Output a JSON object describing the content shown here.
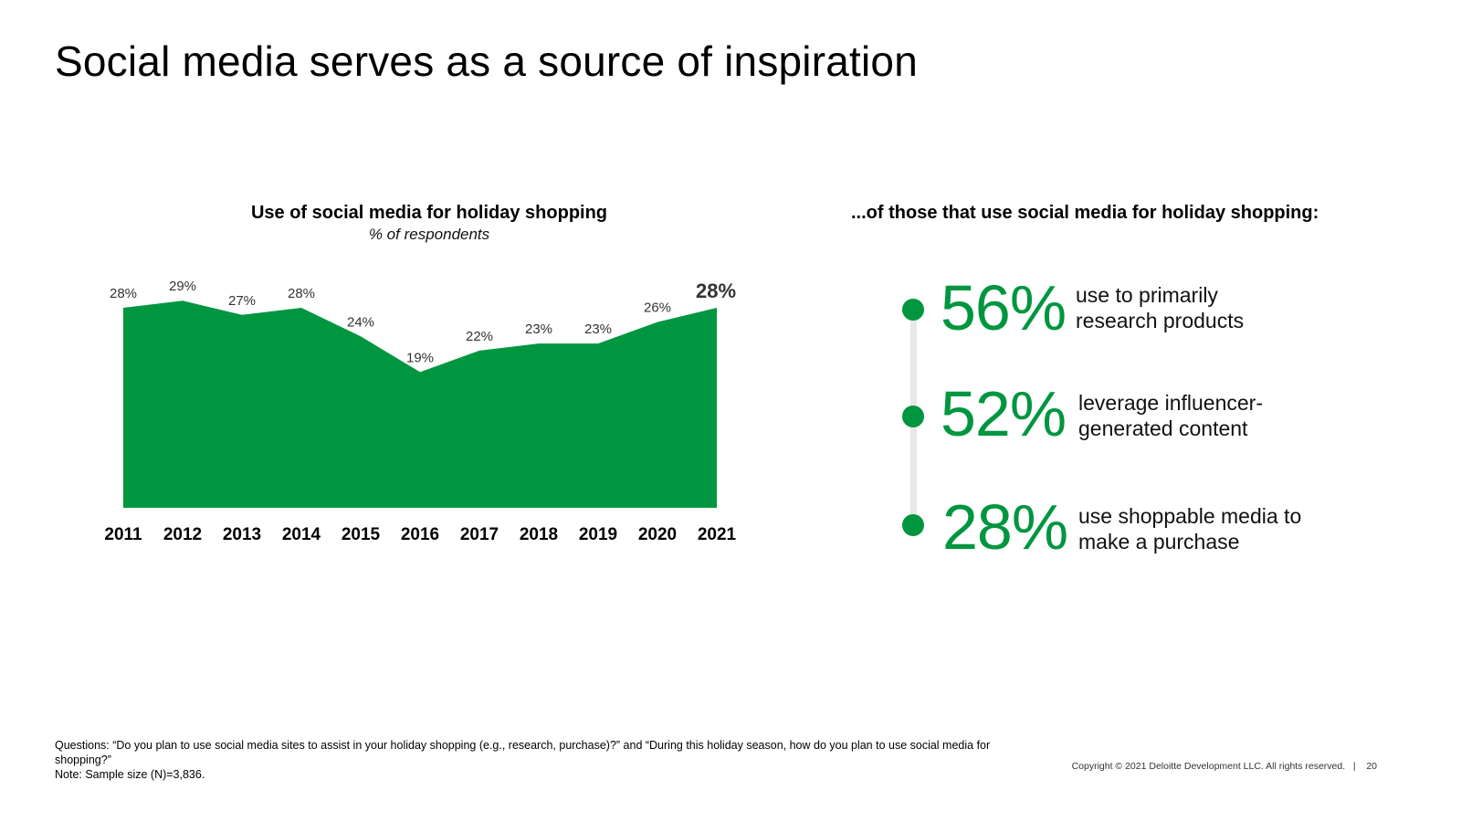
{
  "slide": {
    "title": "Social media serves as a source of inspiration"
  },
  "chart_data": {
    "type": "area",
    "title": "Use of social media for holiday shopping",
    "subtitle": "% of respondents",
    "categories": [
      "2011",
      "2012",
      "2013",
      "2014",
      "2015",
      "2016",
      "2017",
      "2018",
      "2019",
      "2020",
      "2021"
    ],
    "series": [
      {
        "values": [
          28,
          29,
          27,
          28,
          24,
          19,
          22,
          23,
          23,
          26,
          28
        ],
        "labels": [
          "28%",
          "29%",
          "27%",
          "28%",
          "24%",
          "19%",
          "22%",
          "23%",
          "23%",
          "26%",
          "28%"
        ]
      }
    ],
    "highlight_last_label": true,
    "ylim": [
      0,
      28
    ],
    "color": "#00963f"
  },
  "right_panel": {
    "heading": "...of those that use social media for holiday shopping:",
    "stats": [
      {
        "value": "56%",
        "text": "use to primarily\nresearch products"
      },
      {
        "value": "52%",
        "text": "leverage influencer-\ngenerated content"
      },
      {
        "value": "28%",
        "text": "use shoppable media to\nmake a purchase"
      }
    ],
    "accent_color": "#00963f"
  },
  "footnote": {
    "questions": "Questions: “Do you plan to use social media sites to assist in your holiday shopping (e.g., research, purchase)?” and “During this holiday season, how do you plan to use social media for shopping?”",
    "note": "Note: Sample size (N)=3,836."
  },
  "footer": {
    "copyright": "Copyright © 2021 Deloitte Development LLC. All rights reserved.",
    "separator": "|",
    "page_number": "20"
  }
}
